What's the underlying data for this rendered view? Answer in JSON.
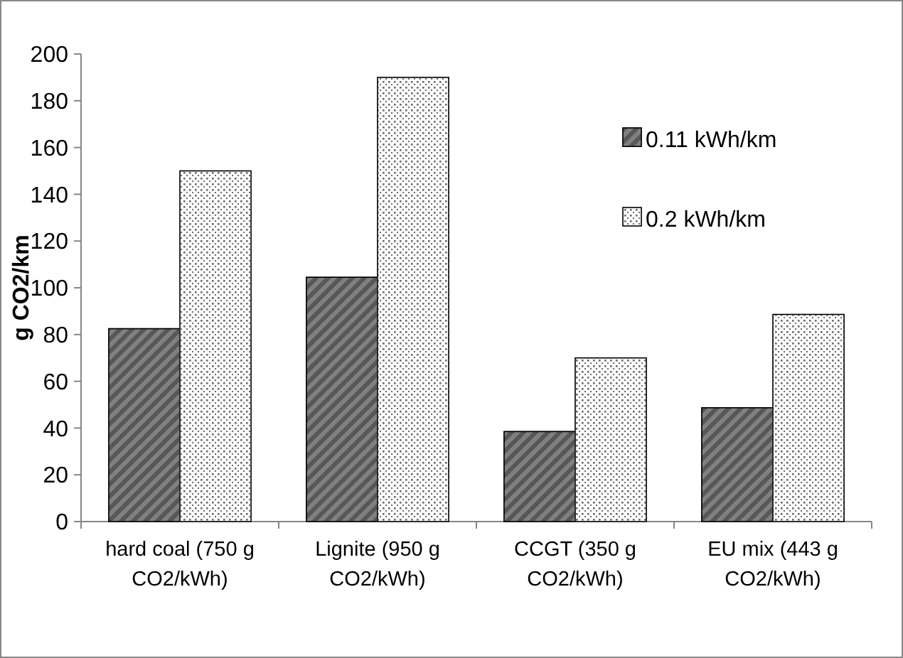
{
  "chart_data": {
    "type": "bar",
    "ylabel": "g CO2/km",
    "categories": [
      "hard coal (750 g CO2/kWh)",
      "Lignite (950 g CO2/kWh)",
      "CCGT (350 g CO2/kWh)",
      "EU mix (443 g CO2/kWh)"
    ],
    "series": [
      {
        "name": "0.11 kWh/km",
        "color": "#808080",
        "values": [
          82.5,
          104.5,
          38.5,
          48.7
        ]
      },
      {
        "name": "0.2 kWh/km",
        "color": "#e6e6e6",
        "values": [
          150,
          190,
          70,
          88.6
        ]
      }
    ],
    "ylim": [
      0,
      200
    ],
    "yticks": [
      0,
      20,
      40,
      60,
      80,
      100,
      120,
      140,
      160,
      180,
      200
    ],
    "grid": false,
    "legend": "top right"
  }
}
